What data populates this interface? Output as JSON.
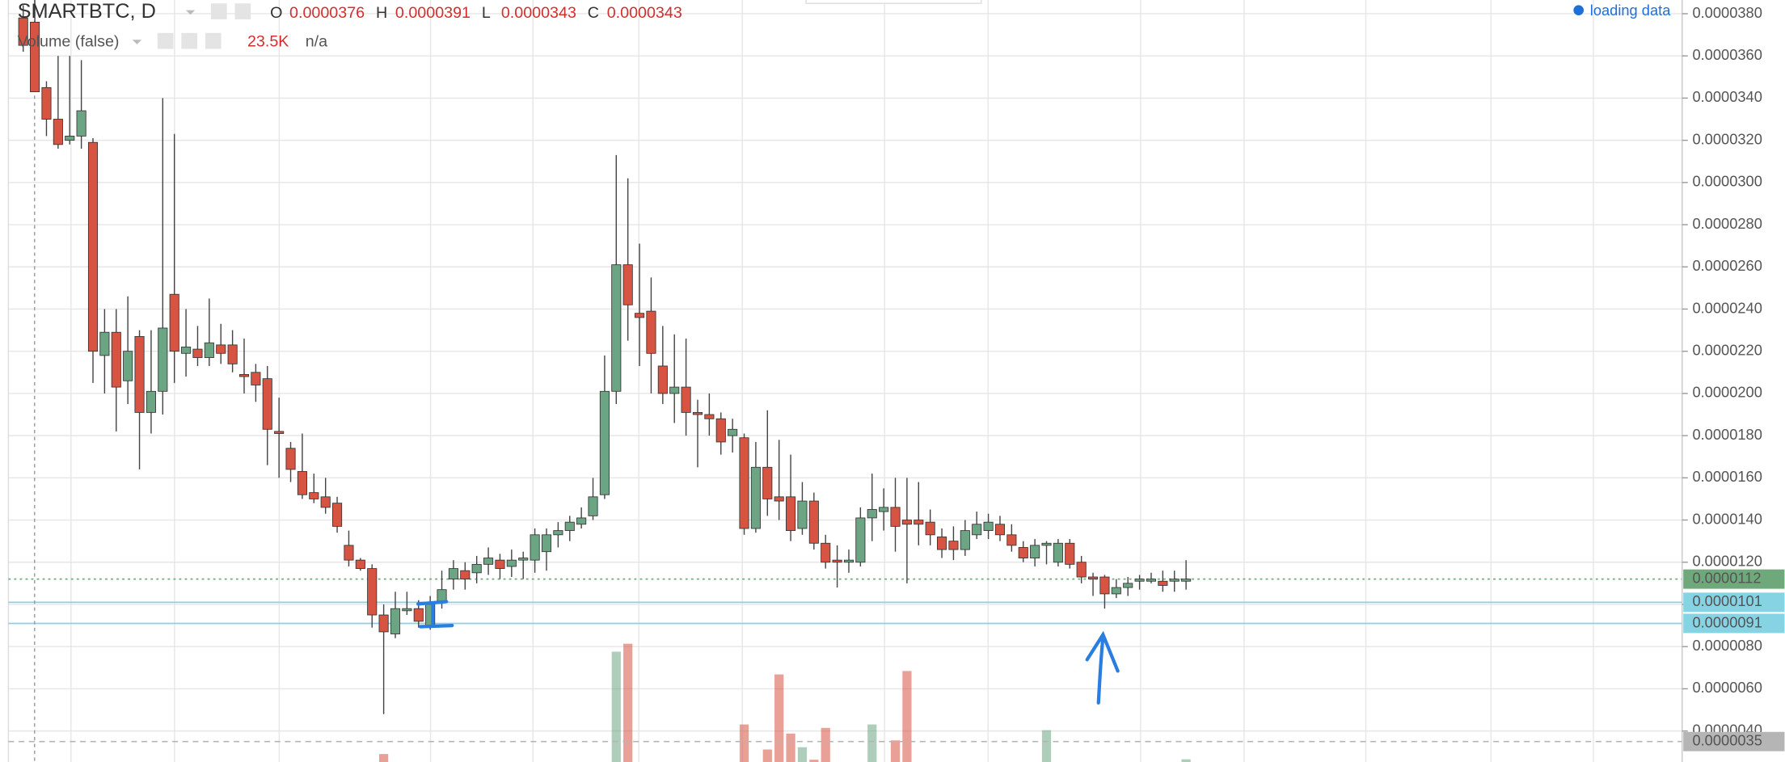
{
  "chart_data": {
    "type": "candlestick",
    "title": "SMARTBTC, D",
    "ohlc_legend": [
      {
        "key": "O",
        "value": "0.0000376"
      },
      {
        "key": "H",
        "value": "0.0000391"
      },
      {
        "key": "L",
        "value": "0.0000343"
      },
      {
        "key": "C",
        "value": "0.0000343"
      }
    ],
    "volume_legend": {
      "name": "Volume (false)",
      "value": "23.5K",
      "extra": "n/a"
    },
    "status": "loading data",
    "up_color": "#6ba583",
    "down_color": "#d75442",
    "ylim": [
      2.53e-06,
      3.865e-05
    ],
    "yticks": [
      {
        "value": 3.8e-05,
        "label": "0.0000380"
      },
      {
        "value": 3.6e-05,
        "label": "0.0000360"
      },
      {
        "value": 3.4e-05,
        "label": "0.0000340"
      },
      {
        "value": 3.2e-05,
        "label": "0.0000320"
      },
      {
        "value": 3e-05,
        "label": "0.0000300"
      },
      {
        "value": 2.8e-05,
        "label": "0.0000280"
      },
      {
        "value": 2.6e-05,
        "label": "0.0000260"
      },
      {
        "value": 2.4e-05,
        "label": "0.0000240"
      },
      {
        "value": 2.2e-05,
        "label": "0.0000220"
      },
      {
        "value": 2e-05,
        "label": "0.0000200"
      },
      {
        "value": 1.8e-05,
        "label": "0.0000180"
      },
      {
        "value": 1.6e-05,
        "label": "0.0000160"
      },
      {
        "value": 1.4e-05,
        "label": "0.0000140"
      },
      {
        "value": 1.2e-05,
        "label": "0.0000120"
      },
      {
        "value": 1e-05,
        "label": "0.0000100"
      },
      {
        "value": 8e-06,
        "label": "0.0000080"
      },
      {
        "value": 6e-06,
        "label": "0.0000060"
      },
      {
        "value": 4e-06,
        "label": "0.0000040"
      }
    ],
    "grid": true,
    "price_lines": [
      {
        "value": 1.12e-05,
        "label": "0.0000112",
        "color": "#6fa87a",
        "style": "dotted"
      },
      {
        "value": 1.01e-05,
        "label": "0.0000101",
        "color": "#86d3e3",
        "style": "solid"
      },
      {
        "value": 9.1e-06,
        "label": "0.0000091",
        "color": "#86d3e3",
        "style": "solid"
      },
      {
        "value": 3.5e-06,
        "label": "0.0000035",
        "color": "#b5b5b5",
        "style": "dashed"
      }
    ],
    "candles": {
      "open": [
        3.78e-05,
        3.76e-05,
        3.45e-05,
        3.3e-05,
        3.2e-05,
        3.22e-05,
        3.19e-05,
        2.18e-05,
        2.29e-05,
        2.06e-05,
        2.27e-05,
        1.91e-05,
        2.01e-05,
        2.47e-05,
        2.19e-05,
        2.21e-05,
        2.17e-05,
        2.23e-05,
        2.23e-05,
        2.09e-05,
        2.1e-05,
        2.07e-05,
        1.82e-05,
        1.74e-05,
        1.63e-05,
        1.53e-05,
        1.51e-05,
        1.48e-05,
        1.28e-05,
        1.21e-05,
        1.17e-05,
        9.5e-06,
        8.6e-06,
        9.7e-06,
        9.8e-06,
        9e-06,
        1.01e-05,
        1.12e-05,
        1.16e-05,
        1.15e-05,
        1.19e-05,
        1.21e-05,
        1.18e-05,
        1.21e-05,
        1.21e-05,
        1.25e-05,
        1.33e-05,
        1.35e-05,
        1.38e-05,
        1.42e-05,
        1.52e-05,
        2.01e-05,
        2.61e-05,
        2.38e-05,
        2.39e-05,
        2.13e-05,
        2e-05,
        2.03e-05,
        1.91e-05,
        1.9e-05,
        1.88e-05,
        1.8e-05,
        1.79e-05,
        1.36e-05,
        1.65e-05,
        1.51e-05,
        1.51e-05,
        1.36e-05,
        1.49e-05,
        1.29e-05,
        1.21e-05,
        1.2e-05,
        1.2e-05,
        1.41e-05,
        1.44e-05,
        1.46e-05,
        1.4e-05,
        1.4e-05,
        1.39e-05,
        1.32e-05,
        1.3e-05,
        1.26e-05,
        1.33e-05,
        1.35e-05,
        1.38e-05,
        1.33e-05,
        1.27e-05,
        1.22e-05,
        1.28e-05,
        1.2e-05,
        1.29e-05,
        1.2e-05,
        1.13e-05,
        1.13e-05,
        1.05e-05,
        1.08e-05,
        1.11e-05,
        1.11e-05,
        1.11e-05,
        1.11e-05,
        1.11e-05
      ],
      "high": [
        3.84e-05,
        3.91e-05,
        3.48e-05,
        3.6e-05,
        3.6e-05,
        3.58e-05,
        3.21e-05,
        2.4e-05,
        2.4e-05,
        2.46e-05,
        2.3e-05,
        2.3e-05,
        3.4e-05,
        3.23e-05,
        2.4e-05,
        2.32e-05,
        2.45e-05,
        2.33e-05,
        2.3e-05,
        2.26e-05,
        2.14e-05,
        2.13e-05,
        1.98e-05,
        1.77e-05,
        1.81e-05,
        1.62e-05,
        1.6e-05,
        1.51e-05,
        1.35e-05,
        1.22e-05,
        1.19e-05,
        1e-05,
        1.06e-05,
        1.06e-05,
        1.02e-05,
        1.04e-05,
        1.16e-05,
        1.21e-05,
        1.2e-05,
        1.23e-05,
        1.27e-05,
        1.24e-05,
        1.26e-05,
        1.25e-05,
        1.36e-05,
        1.36e-05,
        1.39e-05,
        1.42e-05,
        1.46e-05,
        1.6e-05,
        2.18e-05,
        3.13e-05,
        3.02e-05,
        2.71e-05,
        2.55e-05,
        2.32e-05,
        2.28e-05,
        2.26e-05,
        1.97e-05,
        2e-05,
        1.91e-05,
        1.88e-05,
        1.81e-05,
        1.77e-05,
        1.92e-05,
        1.78e-05,
        1.71e-05,
        1.58e-05,
        1.53e-05,
        1.33e-05,
        1.28e-05,
        1.26e-05,
        1.46e-05,
        1.62e-05,
        1.55e-05,
        1.6e-05,
        1.6e-05,
        1.58e-05,
        1.45e-05,
        1.36e-05,
        1.37e-05,
        1.4e-05,
        1.44e-05,
        1.43e-05,
        1.42e-05,
        1.38e-05,
        1.3e-05,
        1.31e-05,
        1.3e-05,
        1.31e-05,
        1.31e-05,
        1.23e-05,
        1.15e-05,
        1.14e-05,
        1.12e-05,
        1.13e-05,
        1.14e-05,
        1.15e-05,
        1.16e-05,
        1.16e-05,
        1.21e-05
      ],
      "low": [
        3.62e-05,
        3.43e-05,
        3.22e-05,
        3.16e-05,
        3.18e-05,
        3.16e-05,
        2.05e-05,
        2e-05,
        1.82e-05,
        1.95e-05,
        1.64e-05,
        1.81e-05,
        1.9e-05,
        2.05e-05,
        2.08e-05,
        2.13e-05,
        2.13e-05,
        2.14e-05,
        2.1e-05,
        2e-05,
        1.96e-05,
        1.66e-05,
        1.6e-05,
        1.58e-05,
        1.5e-05,
        1.48e-05,
        1.43e-05,
        1.34e-05,
        1.18e-05,
        1.16e-05,
        8.9e-06,
        4.8e-06,
        8.4e-06,
        9.5e-06,
        8.9e-06,
        8.8e-06,
        9.8e-06,
        1.07e-05,
        1.07e-05,
        1.1e-05,
        1.14e-05,
        1.12e-05,
        1.13e-05,
        1.12e-05,
        1.15e-05,
        1.16e-05,
        1.27e-05,
        1.3e-05,
        1.36e-05,
        1.4e-05,
        1.5e-05,
        1.95e-05,
        2.25e-05,
        2.13e-05,
        2e-05,
        1.95e-05,
        1.86e-05,
        1.8e-05,
        1.65e-05,
        1.8e-05,
        1.71e-05,
        1.72e-05,
        1.33e-05,
        1.34e-05,
        1.42e-05,
        1.4e-05,
        1.3e-05,
        1.33e-05,
        1.26e-05,
        1.17e-05,
        1.08e-05,
        1.15e-05,
        1.18e-05,
        1.3e-05,
        1.35e-05,
        1.25e-05,
        1.1e-05,
        1.28e-05,
        1.28e-05,
        1.22e-05,
        1.21e-05,
        1.23e-05,
        1.31e-05,
        1.31e-05,
        1.3e-05,
        1.25e-05,
        1.2e-05,
        1.18e-05,
        1.19e-05,
        1.18e-05,
        1.17e-05,
        1.1e-05,
        1.04e-05,
        9.8e-06,
        1.03e-05,
        1.04e-05,
        1.07e-05,
        1.1e-05,
        1.06e-05,
        1.06e-05,
        1.07e-05
      ],
      "close": [
        3.65e-05,
        3.43e-05,
        3.3e-05,
        3.18e-05,
        3.22e-05,
        3.34e-05,
        2.2e-05,
        2.29e-05,
        2.03e-05,
        2.2e-05,
        1.91e-05,
        2.01e-05,
        2.31e-05,
        2.2e-05,
        2.22e-05,
        2.17e-05,
        2.24e-05,
        2.19e-05,
        2.14e-05,
        2.08e-05,
        2.04e-05,
        1.83e-05,
        1.81e-05,
        1.64e-05,
        1.52e-05,
        1.5e-05,
        1.46e-05,
        1.37e-05,
        1.21e-05,
        1.17e-05,
        9.5e-06,
        8.7e-06,
        9.8e-06,
        9.8e-06,
        9.2e-06,
        1e-05,
        1.07e-05,
        1.17e-05,
        1.12e-05,
        1.19e-05,
        1.22e-05,
        1.17e-05,
        1.21e-05,
        1.22e-05,
        1.33e-05,
        1.33e-05,
        1.35e-05,
        1.39e-05,
        1.41e-05,
        1.51e-05,
        2.01e-05,
        2.61e-05,
        2.42e-05,
        2.36e-05,
        2.19e-05,
        2e-05,
        2.03e-05,
        1.91e-05,
        1.9e-05,
        1.88e-05,
        1.77e-05,
        1.83e-05,
        1.36e-05,
        1.65e-05,
        1.5e-05,
        1.49e-05,
        1.35e-05,
        1.49e-05,
        1.29e-05,
        1.2e-05,
        1.2e-05,
        1.21e-05,
        1.41e-05,
        1.45e-05,
        1.46e-05,
        1.37e-05,
        1.38e-05,
        1.38e-05,
        1.33e-05,
        1.26e-05,
        1.26e-05,
        1.35e-05,
        1.38e-05,
        1.39e-05,
        1.33e-05,
        1.28e-05,
        1.22e-05,
        1.28e-05,
        1.29e-05,
        1.29e-05,
        1.19e-05,
        1.13e-05,
        1.12e-05,
        1.05e-05,
        1.08e-05,
        1.1e-05,
        1.12e-05,
        1.12e-05,
        1.09e-05,
        1.12e-05,
        1.12e-05
      ]
    },
    "volume": {
      "vlim": [
        0,
        1100
      ],
      "values": [
        null,
        null,
        null,
        null,
        null,
        null,
        null,
        null,
        null,
        null,
        null,
        null,
        null,
        null,
        null,
        null,
        null,
        null,
        null,
        null,
        null,
        null,
        null,
        null,
        null,
        null,
        null,
        null,
        null,
        null,
        null,
        70,
        null,
        null,
        null,
        null,
        null,
        null,
        null,
        null,
        null,
        null,
        null,
        null,
        null,
        null,
        null,
        null,
        null,
        null,
        null,
        970,
        1040,
        null,
        null,
        null,
        null,
        null,
        null,
        null,
        null,
        null,
        330,
        null,
        110,
        770,
        250,
        130,
        20,
        300,
        null,
        null,
        null,
        330,
        null,
        190,
        800,
        null,
        null,
        null,
        null,
        null,
        null,
        null,
        null,
        null,
        null,
        null,
        280,
        null,
        null,
        null,
        null,
        null,
        null,
        null,
        null,
        null,
        null,
        null,
        23.5
      ]
    }
  }
}
